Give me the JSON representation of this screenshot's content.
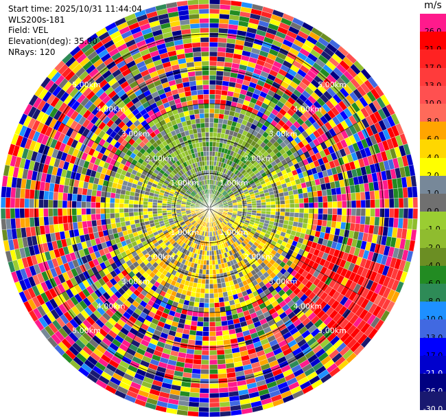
{
  "header": {
    "start_time": "Start time: 2025/10/31 11:44:04",
    "device": "WLS200s-181",
    "field": "Field: VEL",
    "elevation": "Elevation(deg): 35.00",
    "nrays": "NRays: 120"
  },
  "colorbar": {
    "unit": "m/s",
    "levels": [
      {
        "label": "26.0",
        "color": "#ff1a8c",
        "text": "#000000"
      },
      {
        "label": "21.0",
        "color": "#ff0000",
        "text": "#000000"
      },
      {
        "label": "17.0",
        "color": "#ff2222",
        "text": "#000000"
      },
      {
        "label": "13.0",
        "color": "#ff3b3b",
        "text": "#000000"
      },
      {
        "label": "10.0",
        "color": "#ff5050",
        "text": "#000000"
      },
      {
        "label": "8.0",
        "color": "#ff6a5a",
        "text": "#000000"
      },
      {
        "label": "6.0",
        "color": "#ffa500",
        "text": "#000000"
      },
      {
        "label": "4.0",
        "color": "#ffd700",
        "text": "#000000"
      },
      {
        "label": "2.0",
        "color": "#ffff00",
        "text": "#000000"
      },
      {
        "label": "1.0",
        "color": "#778899",
        "text": "#000000"
      },
      {
        "label": "0.0",
        "color": "#707070",
        "text": "#000000"
      },
      {
        "label": "-1.0",
        "color": "#9acd32",
        "text": "#000000"
      },
      {
        "label": "-2.0",
        "color": "#8fbc2f",
        "text": "#000000"
      },
      {
        "label": "-4.0",
        "color": "#6b8e23",
        "text": "#000000"
      },
      {
        "label": "-6.0",
        "color": "#228b22",
        "text": "#000000"
      },
      {
        "label": "-8.0",
        "color": "#2e8b57",
        "text": "#000000"
      },
      {
        "label": "-10.0",
        "color": "#1e90ff",
        "text": "#000000"
      },
      {
        "label": "-13.0",
        "color": "#4169e1",
        "text": "#000000"
      },
      {
        "label": "-17.0",
        "color": "#0000ff",
        "text": "#000000"
      },
      {
        "label": "-21.0",
        "color": "#0000cd",
        "text": "#ffffff"
      },
      {
        "label": "-26.0",
        "color": "#000080",
        "text": "#ffffff"
      },
      {
        "label": "-30.0",
        "color": "#191970",
        "text": "#ffffff"
      }
    ]
  },
  "chart_data": {
    "type": "heatmap",
    "subtype": "ppi-polar",
    "field": "VEL",
    "nrays": 120,
    "max_range_km": 6.0,
    "range_rings_km": [
      1.0,
      2.0,
      3.0,
      4.0,
      5.0
    ],
    "ring_labels": [
      "1.00km",
      "2.00km",
      "3.00km",
      "4.00km",
      "5.00km"
    ],
    "grid": true,
    "background_color": "#ffffff",
    "ring_color": "#000000",
    "dominant_values_by_region": [
      {
        "sector": "north",
        "range_km": [
          0,
          1
        ],
        "value_ms": -6.0
      },
      {
        "sector": "north",
        "range_km": [
          1,
          3
        ],
        "value_ms": -1.0
      },
      {
        "sector": "south",
        "range_km": [
          0,
          1
        ],
        "value_ms": 6.0
      },
      {
        "sector": "south",
        "range_km": [
          1,
          3
        ],
        "value_ms": 2.0
      },
      {
        "sector": "east/west",
        "range_km": [
          0,
          3
        ],
        "value_ms": 0.0
      },
      {
        "sector": "south-east",
        "range_km": [
          3,
          6
        ],
        "value_ms": 21.0
      },
      {
        "sector": "all",
        "range_km": [
          3,
          6
        ],
        "value_ms": "noise"
      }
    ]
  }
}
